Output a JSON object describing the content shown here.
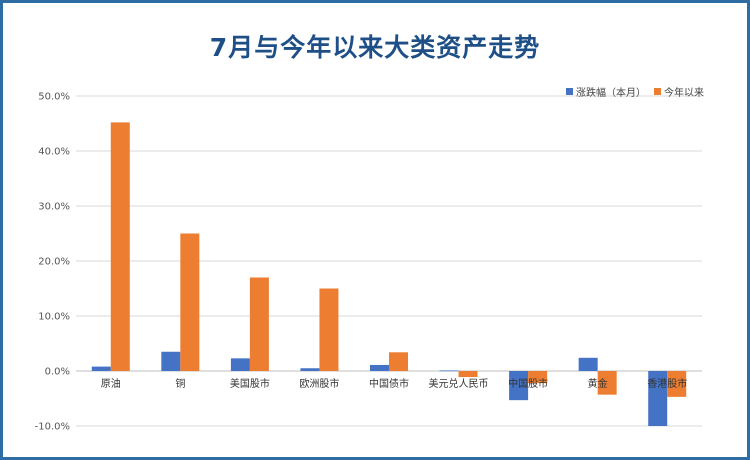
{
  "chart_data": {
    "type": "bar",
    "title": "7月与今年以来大类资产走势",
    "categories": [
      "原油",
      "铜",
      "美国股市",
      "欧洲股市",
      "中国债市",
      "美元兑人民币",
      "中国股市",
      "黄金",
      "香港股市"
    ],
    "series": [
      {
        "name": "涨跌幅（本月）",
        "color": "#4472c4",
        "values": [
          0.8,
          3.5,
          2.3,
          0.5,
          1.1,
          0.1,
          -5.3,
          2.4,
          -10.0
        ]
      },
      {
        "name": "今年以来",
        "color": "#ed7d31",
        "values": [
          45.2,
          25.0,
          17.0,
          15.0,
          3.4,
          -1.1,
          -2.2,
          -4.3,
          -4.7
        ]
      }
    ],
    "ylim": [
      -10,
      50
    ],
    "yticks": [
      "-10.0%",
      "0.0%",
      "10.0%",
      "20.0%",
      "30.0%",
      "40.0%",
      "50.0%"
    ],
    "ytick_values": [
      -10,
      0,
      10,
      20,
      30,
      40,
      50
    ],
    "grid": true,
    "legend_position": "top-right"
  }
}
